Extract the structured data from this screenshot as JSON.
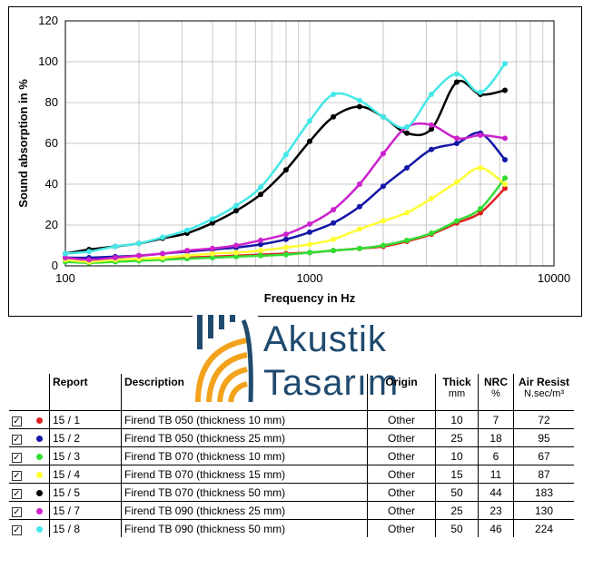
{
  "chart_data": {
    "type": "line",
    "x_scale": "log",
    "xlabel": "Frequency in Hz",
    "ylabel": "Sound absorption in %",
    "xlim": [
      100,
      10000
    ],
    "ylim": [
      0,
      120
    ],
    "x_ticks": [
      100,
      1000,
      10000
    ],
    "x_tick_labels": [
      "100",
      "1000",
      "10000"
    ],
    "y_ticks": [
      0,
      20,
      40,
      60,
      80,
      100,
      120
    ],
    "y_tick_labels": [
      "0",
      "20",
      "40",
      "60",
      "80",
      "100",
      "120"
    ],
    "grid": true,
    "x": [
      100,
      125,
      160,
      200,
      250,
      315,
      400,
      500,
      630,
      800,
      1000,
      1250,
      1600,
      2000,
      2500,
      3150,
      4000,
      5000,
      6300
    ],
    "series": [
      {
        "name": "15 / 1",
        "color": "#e02020",
        "values": [
          3,
          2,
          2.5,
          3,
          3.5,
          4,
          4.5,
          5,
          5.5,
          6,
          6.5,
          7.5,
          8.5,
          9.5,
          12,
          15.5,
          21,
          26,
          38
        ]
      },
      {
        "name": "15 / 2",
        "color": "#1515a8",
        "values": [
          4,
          4,
          4.5,
          5,
          6,
          7,
          8,
          9,
          10.5,
          13,
          16.5,
          21,
          29,
          39,
          48,
          57,
          60,
          65,
          52
        ]
      },
      {
        "name": "15 / 3",
        "color": "#33dd33",
        "values": [
          2,
          1.5,
          2,
          2.5,
          3,
          3.5,
          4,
          4.5,
          5,
          5.5,
          6.5,
          7.5,
          8.5,
          10,
          12.5,
          16,
          22,
          28,
          43
        ]
      },
      {
        "name": "15 / 4",
        "color": "#ffff33",
        "values": [
          3,
          2,
          3,
          3.5,
          4,
          5,
          6,
          6.5,
          7.5,
          9,
          10.5,
          13,
          18,
          22,
          26,
          33,
          41,
          48,
          40
        ]
      },
      {
        "name": "15 / 5",
        "color": "#000000",
        "values": [
          6,
          8,
          9.5,
          11,
          13.5,
          16,
          21,
          27,
          35,
          47,
          61,
          73,
          78,
          73,
          65,
          67,
          90,
          84,
          86
        ]
      },
      {
        "name": "15 / 7",
        "color": "#cc22cc",
        "values": [
          4,
          3,
          4,
          5,
          6,
          7.5,
          8.5,
          10,
          12.5,
          15.5,
          20.5,
          27.5,
          40,
          55,
          68,
          69,
          62.5,
          64,
          62.5
        ]
      },
      {
        "name": "15 / 8",
        "color": "#44e8e8",
        "values": [
          6,
          7,
          9.5,
          11,
          14,
          17.5,
          23,
          29.5,
          38.5,
          54.5,
          71,
          84,
          81,
          73,
          68,
          84,
          94,
          85,
          99
        ]
      }
    ]
  },
  "logo": {
    "line1": "Akustik",
    "line2": "Tasarım"
  },
  "table": {
    "headers": {
      "report": "Report",
      "description": "Description",
      "origin": "Origin",
      "thick": "Thick",
      "thick_unit": "mm",
      "nrc": "NRC",
      "nrc_unit": "%",
      "air": "Air Resist",
      "air_unit": "N.sec/m³"
    },
    "checkbox_mark": "✓",
    "rows": [
      {
        "report": "15 / 1",
        "description": "Firend TB 050 (thickness 10 mm)",
        "origin": "Other",
        "thick": "10",
        "nrc": "7",
        "air": "72",
        "color": "#e02020"
      },
      {
        "report": "15 / 2",
        "description": "Firend TB 050 (thickness 25 mm)",
        "origin": "Other",
        "thick": "25",
        "nrc": "18",
        "air": "95",
        "color": "#1515a8"
      },
      {
        "report": "15 / 3",
        "description": "Firend TB 070 (thickness 10 mm)",
        "origin": "Other",
        "thick": "10",
        "nrc": "6",
        "air": "67",
        "color": "#33dd33"
      },
      {
        "report": "15 / 4",
        "description": "Firend TB 070 (thickness 15 mm)",
        "origin": "Other",
        "thick": "15",
        "nrc": "11",
        "air": "87",
        "color": "#ffff33"
      },
      {
        "report": "15 / 5",
        "description": "Firend TB 070 (thickness 50 mm)",
        "origin": "Other",
        "thick": "50",
        "nrc": "44",
        "air": "183",
        "color": "#000000"
      },
      {
        "report": "15 / 7",
        "description": "Firend TB 090 (thickness 25 mm)",
        "origin": "Other",
        "thick": "25",
        "nrc": "23",
        "air": "130",
        "color": "#cc22cc"
      },
      {
        "report": "15 / 8",
        "description": "Firend TB 090 (thickness 50 mm)",
        "origin": "Other",
        "thick": "50",
        "nrc": "46",
        "air": "224",
        "color": "#44e8e8"
      }
    ]
  }
}
